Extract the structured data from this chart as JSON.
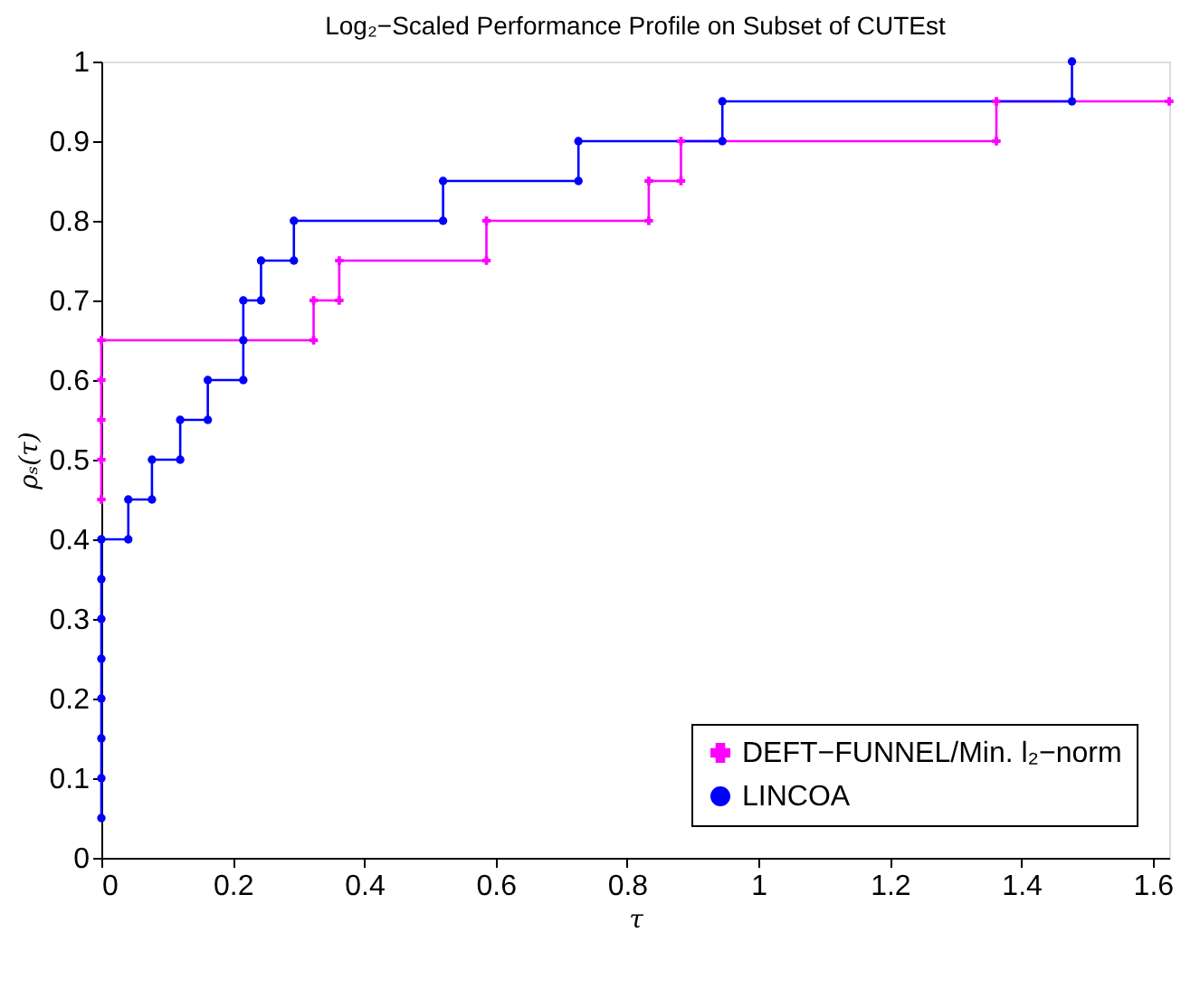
{
  "chart_data": {
    "type": "line",
    "title": "Log₂−Scaled Performance Profile on Subset of CUTEst",
    "xlabel": "τ",
    "ylabel": "ρₛ(τ)",
    "xlim": [
      0,
      1.625
    ],
    "xticks": [
      0,
      0.2,
      0.4,
      0.6,
      0.8,
      1,
      1.2,
      1.4,
      1.6
    ],
    "ylim": [
      0,
      1
    ],
    "yticks": [
      0,
      0.1,
      0.2,
      0.3,
      0.4,
      0.5,
      0.6,
      0.7,
      0.8,
      0.9,
      1
    ],
    "grid": false,
    "legend": "bottom right",
    "line_style": "solid",
    "series": [
      {
        "name": "DEFT−FUNNEL/Min. l₂−norm",
        "color": "#ff00ff",
        "marker": "cross",
        "x": [
          0,
          0,
          0,
          0,
          0,
          0.323,
          0.323,
          0.362,
          0.362,
          0.586,
          0.586,
          0.833,
          0.833,
          0.882,
          0.882,
          1.362,
          1.362,
          1.625
        ],
        "values": [
          0.45,
          0.5,
          0.55,
          0.6,
          0.65,
          0.65,
          0.7,
          0.7,
          0.75,
          0.75,
          0.8,
          0.8,
          0.85,
          0.85,
          0.9,
          0.9,
          0.95,
          0.95
        ]
      },
      {
        "name": "LINCOA",
        "color": "#0000ff",
        "marker": "circle",
        "x": [
          0,
          0,
          0,
          0,
          0,
          0,
          0,
          0,
          0.041,
          0.041,
          0.077,
          0.077,
          0.12,
          0.12,
          0.162,
          0.162,
          0.216,
          0.216,
          0.216,
          0.243,
          0.243,
          0.293,
          0.293,
          0.52,
          0.52,
          0.726,
          0.726,
          0.945,
          0.945,
          1.477,
          1.477
        ],
        "values": [
          0.05,
          0.1,
          0.15,
          0.2,
          0.25,
          0.3,
          0.35,
          0.4,
          0.4,
          0.45,
          0.45,
          0.5,
          0.5,
          0.55,
          0.55,
          0.6,
          0.6,
          0.65,
          0.7,
          0.7,
          0.75,
          0.75,
          0.8,
          0.8,
          0.85,
          0.85,
          0.9,
          0.9,
          0.95,
          0.95,
          1.0
        ]
      }
    ]
  }
}
